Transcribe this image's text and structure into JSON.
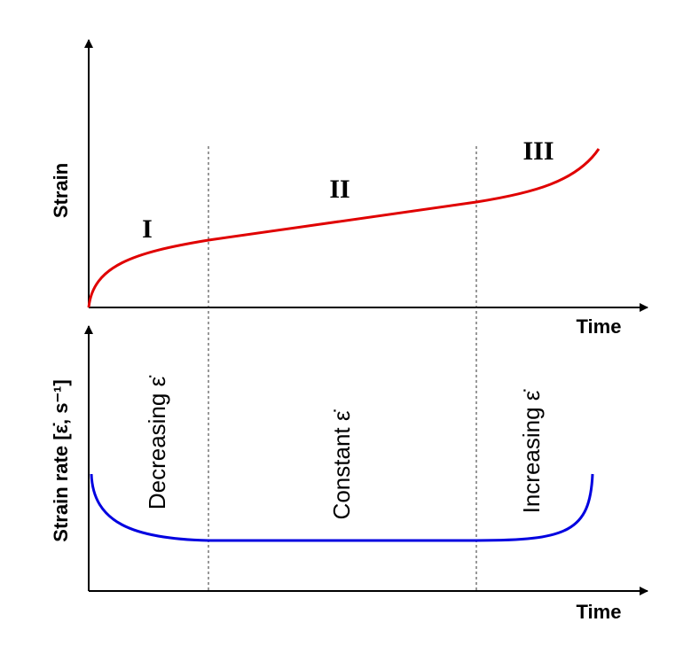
{
  "top_panel": {
    "y_axis_label": "Strain",
    "x_axis_label": "Time",
    "stages": [
      "I",
      "II",
      "III"
    ]
  },
  "bottom_panel": {
    "y_axis_label": "Strain rate [ε̇, s⁻¹]",
    "x_axis_label": "Time",
    "regions": [
      "Decreasing ε̇",
      "Constant ε̇",
      "Increasing ε̇"
    ]
  }
}
